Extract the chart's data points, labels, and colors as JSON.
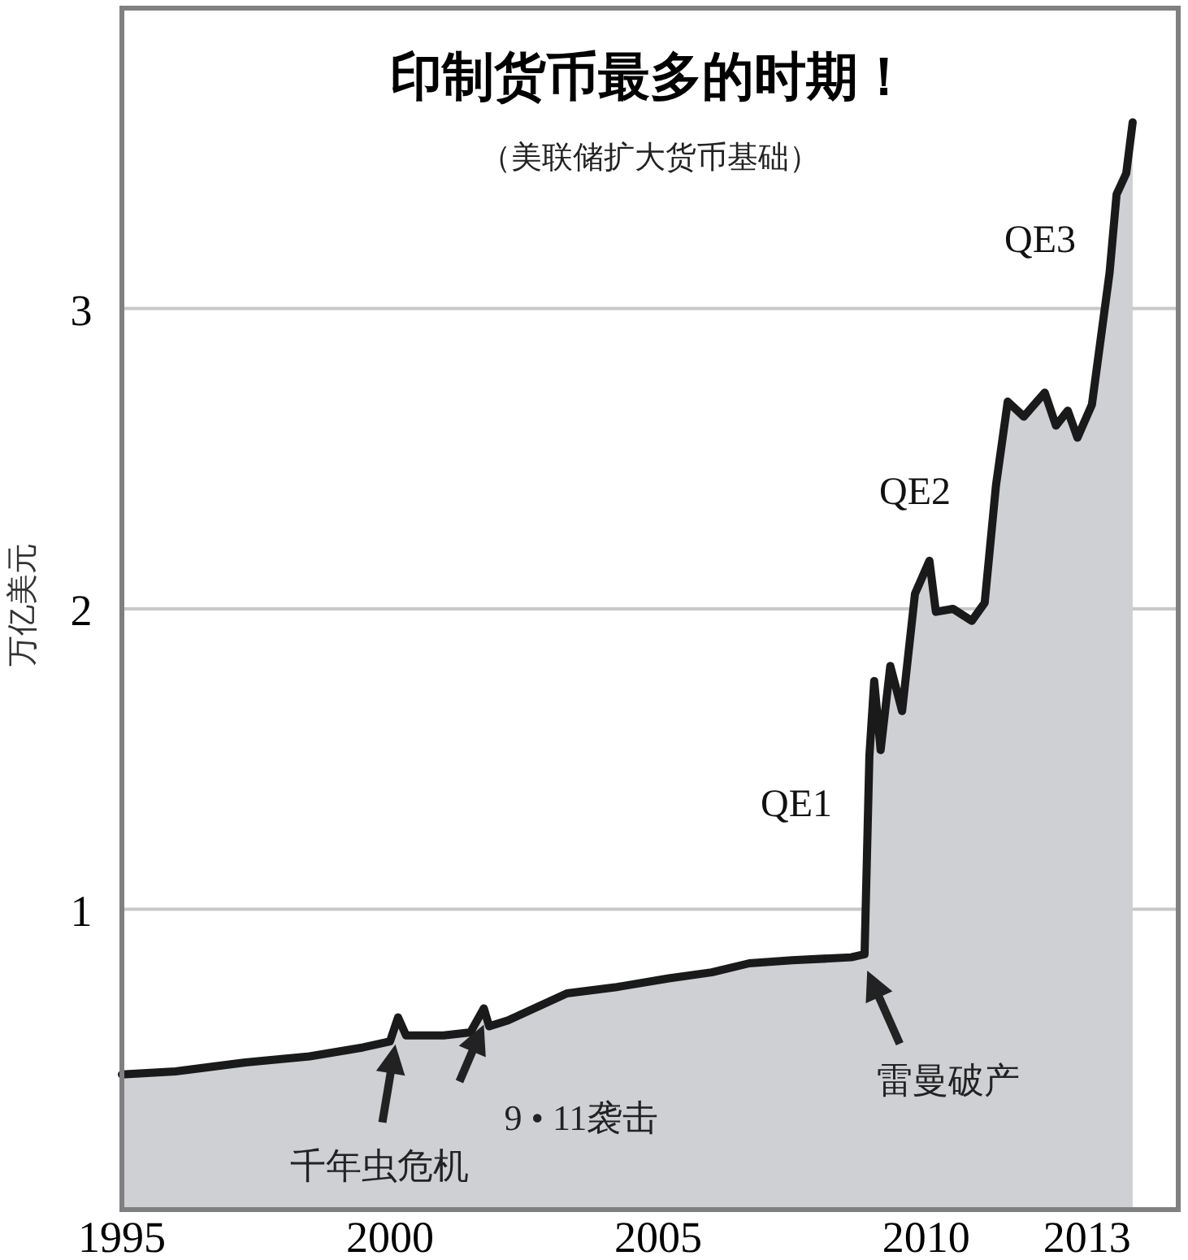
{
  "chart_data": {
    "type": "area",
    "title": "印制货币最多的时期！",
    "subtitle": "（美联储扩大货币基础）",
    "ylabel": "万亿美元",
    "x": [
      1995.0,
      1996.0,
      1997.3,
      1998.5,
      1999.5,
      2000.0,
      2000.15,
      2000.3,
      2001.0,
      2001.5,
      2001.75,
      2001.85,
      2002.2,
      2003.3,
      2004.2,
      2005.2,
      2006.0,
      2006.7,
      2007.5,
      2008.6,
      2008.85,
      2008.94,
      2009.03,
      2009.15,
      2009.33,
      2009.55,
      2009.79,
      2010.06,
      2010.18,
      2010.5,
      2010.85,
      2011.09,
      2011.3,
      2011.52,
      2011.82,
      2012.21,
      2012.42,
      2012.64,
      2012.82,
      2013.09,
      2013.42,
      2013.55,
      2013.73,
      2013.85
    ],
    "series": [
      {
        "color": "#1a1a1a",
        "values": [
          0.45,
          0.46,
          0.49,
          0.51,
          0.54,
          0.56,
          0.64,
          0.58,
          0.58,
          0.59,
          0.67,
          0.61,
          0.63,
          0.72,
          0.74,
          0.77,
          0.79,
          0.82,
          0.83,
          0.84,
          0.85,
          1.51,
          1.76,
          1.53,
          1.81,
          1.66,
          2.05,
          2.16,
          1.99,
          2.0,
          1.96,
          2.02,
          2.41,
          2.69,
          2.64,
          2.72,
          2.61,
          2.66,
          2.57,
          2.68,
          3.12,
          3.38,
          3.45,
          3.62
        ]
      }
    ],
    "xlim": [
      1995,
      2014.7
    ],
    "xticks": [
      1995,
      2000,
      2005,
      2010,
      2013
    ],
    "ylim": [
      0,
      4
    ],
    "yticks": [
      1,
      2,
      3
    ],
    "grid": "y",
    "annotations": [
      {
        "text": "千年虫危机",
        "x": 2000.1,
        "y": 0.55
      },
      {
        "text": "9 • 11袭击",
        "x": 2001.75,
        "y": 0.67
      },
      {
        "text": "雷曼破产",
        "x": 2008.9,
        "y": 0.85
      },
      "QE1",
      "QE2",
      "QE3"
    ]
  }
}
